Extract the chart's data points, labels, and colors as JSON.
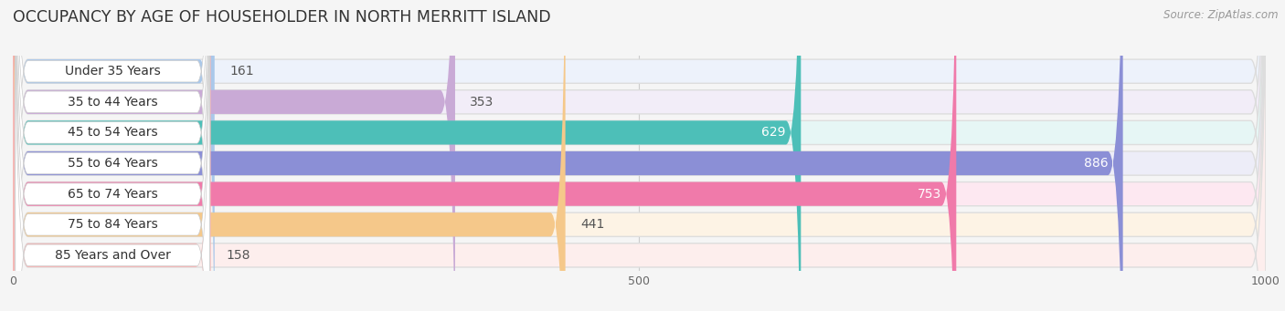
{
  "title": "OCCUPANCY BY AGE OF HOUSEHOLDER IN NORTH MERRITT ISLAND",
  "source": "Source: ZipAtlas.com",
  "categories": [
    "Under 35 Years",
    "35 to 44 Years",
    "45 to 54 Years",
    "55 to 64 Years",
    "65 to 74 Years",
    "75 to 84 Years",
    "85 Years and Over"
  ],
  "values": [
    161,
    353,
    629,
    886,
    753,
    441,
    158
  ],
  "bar_colors": [
    "#aac8ea",
    "#c9aad6",
    "#4dbfb8",
    "#8b8fd6",
    "#f07aaa",
    "#f5c88a",
    "#f5b8b8"
  ],
  "bar_bg_colors": [
    "#edf2fb",
    "#f2edf8",
    "#e6f6f5",
    "#ededf8",
    "#fde8f1",
    "#fdf3e5",
    "#fdeeed"
  ],
  "xlim": [
    0,
    1000
  ],
  "xticks": [
    0,
    500,
    1000
  ],
  "title_fontsize": 12.5,
  "label_fontsize": 10,
  "value_fontsize": 10,
  "background_color": "#f5f5f5"
}
